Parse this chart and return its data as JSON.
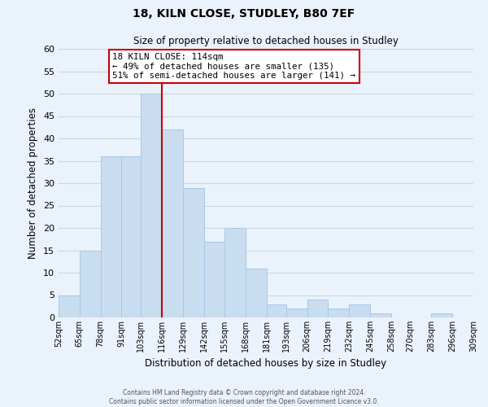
{
  "title": "18, KILN CLOSE, STUDLEY, B80 7EF",
  "subtitle": "Size of property relative to detached houses in Studley",
  "xlabel": "Distribution of detached houses by size in Studley",
  "ylabel": "Number of detached properties",
  "bar_color": "#c9ddf0",
  "bar_edge_color": "#a8c8e8",
  "grid_color": "#c8d8e8",
  "background_color": "#eaf2fb",
  "vline_x": 116,
  "vline_color": "#cc0000",
  "bin_edges": [
    52,
    65,
    78,
    91,
    103,
    116,
    129,
    142,
    155,
    168,
    181,
    193,
    206,
    219,
    232,
    245,
    258,
    270,
    283,
    296,
    309
  ],
  "bin_heights": [
    5,
    15,
    36,
    36,
    50,
    42,
    29,
    17,
    20,
    11,
    3,
    2,
    4,
    2,
    3,
    1,
    0,
    0,
    1,
    0
  ],
  "ylim": [
    0,
    60
  ],
  "yticks": [
    0,
    5,
    10,
    15,
    20,
    25,
    30,
    35,
    40,
    45,
    50,
    55,
    60
  ],
  "xtick_labels": [
    "52sqm",
    "65sqm",
    "78sqm",
    "91sqm",
    "103sqm",
    "116sqm",
    "129sqm",
    "142sqm",
    "155sqm",
    "168sqm",
    "181sqm",
    "193sqm",
    "206sqm",
    "219sqm",
    "232sqm",
    "245sqm",
    "258sqm",
    "270sqm",
    "283sqm",
    "296sqm",
    "309sqm"
  ],
  "annotation_title": "18 KILN CLOSE: 114sqm",
  "annotation_line1": "← 49% of detached houses are smaller (135)",
  "annotation_line2": "51% of semi-detached houses are larger (141) →",
  "annotation_box_color": "#ffffff",
  "annotation_box_edge": "#cc0000",
  "footer_line1": "Contains HM Land Registry data © Crown copyright and database right 2024.",
  "footer_line2": "Contains public sector information licensed under the Open Government Licence v3.0."
}
